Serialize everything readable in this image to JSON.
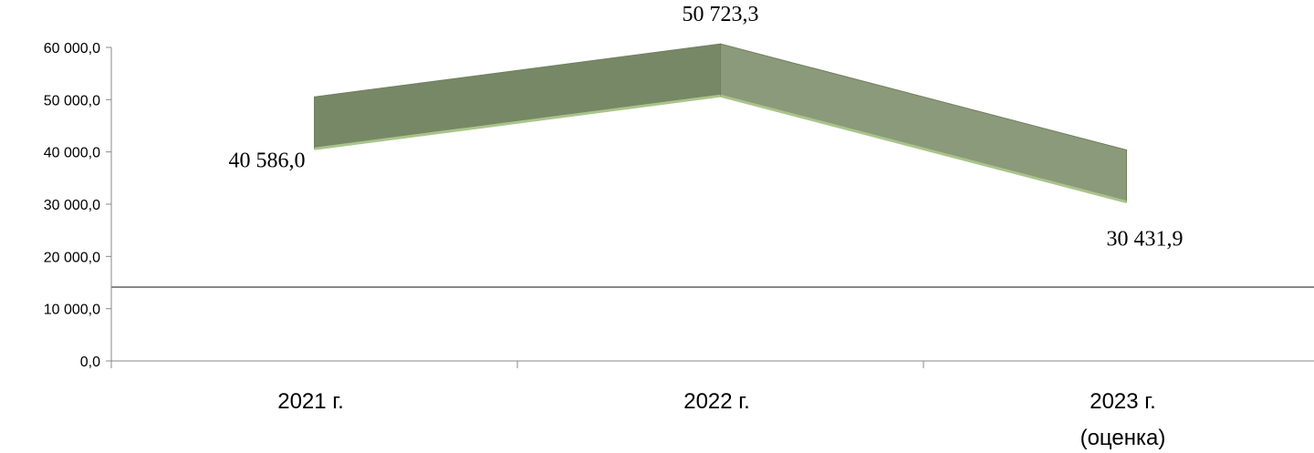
{
  "chart_data": {
    "type": "line",
    "style": "3d-ribbon",
    "categories": [
      [
        "2021 г."
      ],
      [
        "2022 г."
      ],
      [
        "2023 г.",
        "(оценка)"
      ]
    ],
    "values": [
      40586.0,
      50723.3,
      30431.9
    ],
    "data_labels": [
      "40 586,0",
      "50 723,3",
      "30 431,9"
    ],
    "yticks": [
      {
        "value": 0,
        "label": "0,0"
      },
      {
        "value": 10000,
        "label": "10 000,0"
      },
      {
        "value": 20000,
        "label": "20 000,0"
      },
      {
        "value": 30000,
        "label": "30 000,0"
      },
      {
        "value": 40000,
        "label": "40 000,0"
      },
      {
        "value": 50000,
        "label": "50 000,0"
      },
      {
        "value": 60000,
        "label": "60 000,0"
      }
    ],
    "ylim": [
      0,
      60000
    ],
    "grid": false,
    "legend": "none",
    "colors": {
      "ribbon_front": "#778866",
      "ribbon_light": "#8b9a7a",
      "ribbon_edge": "#a9c48a",
      "axis": "#888888",
      "text": "#000000"
    }
  }
}
